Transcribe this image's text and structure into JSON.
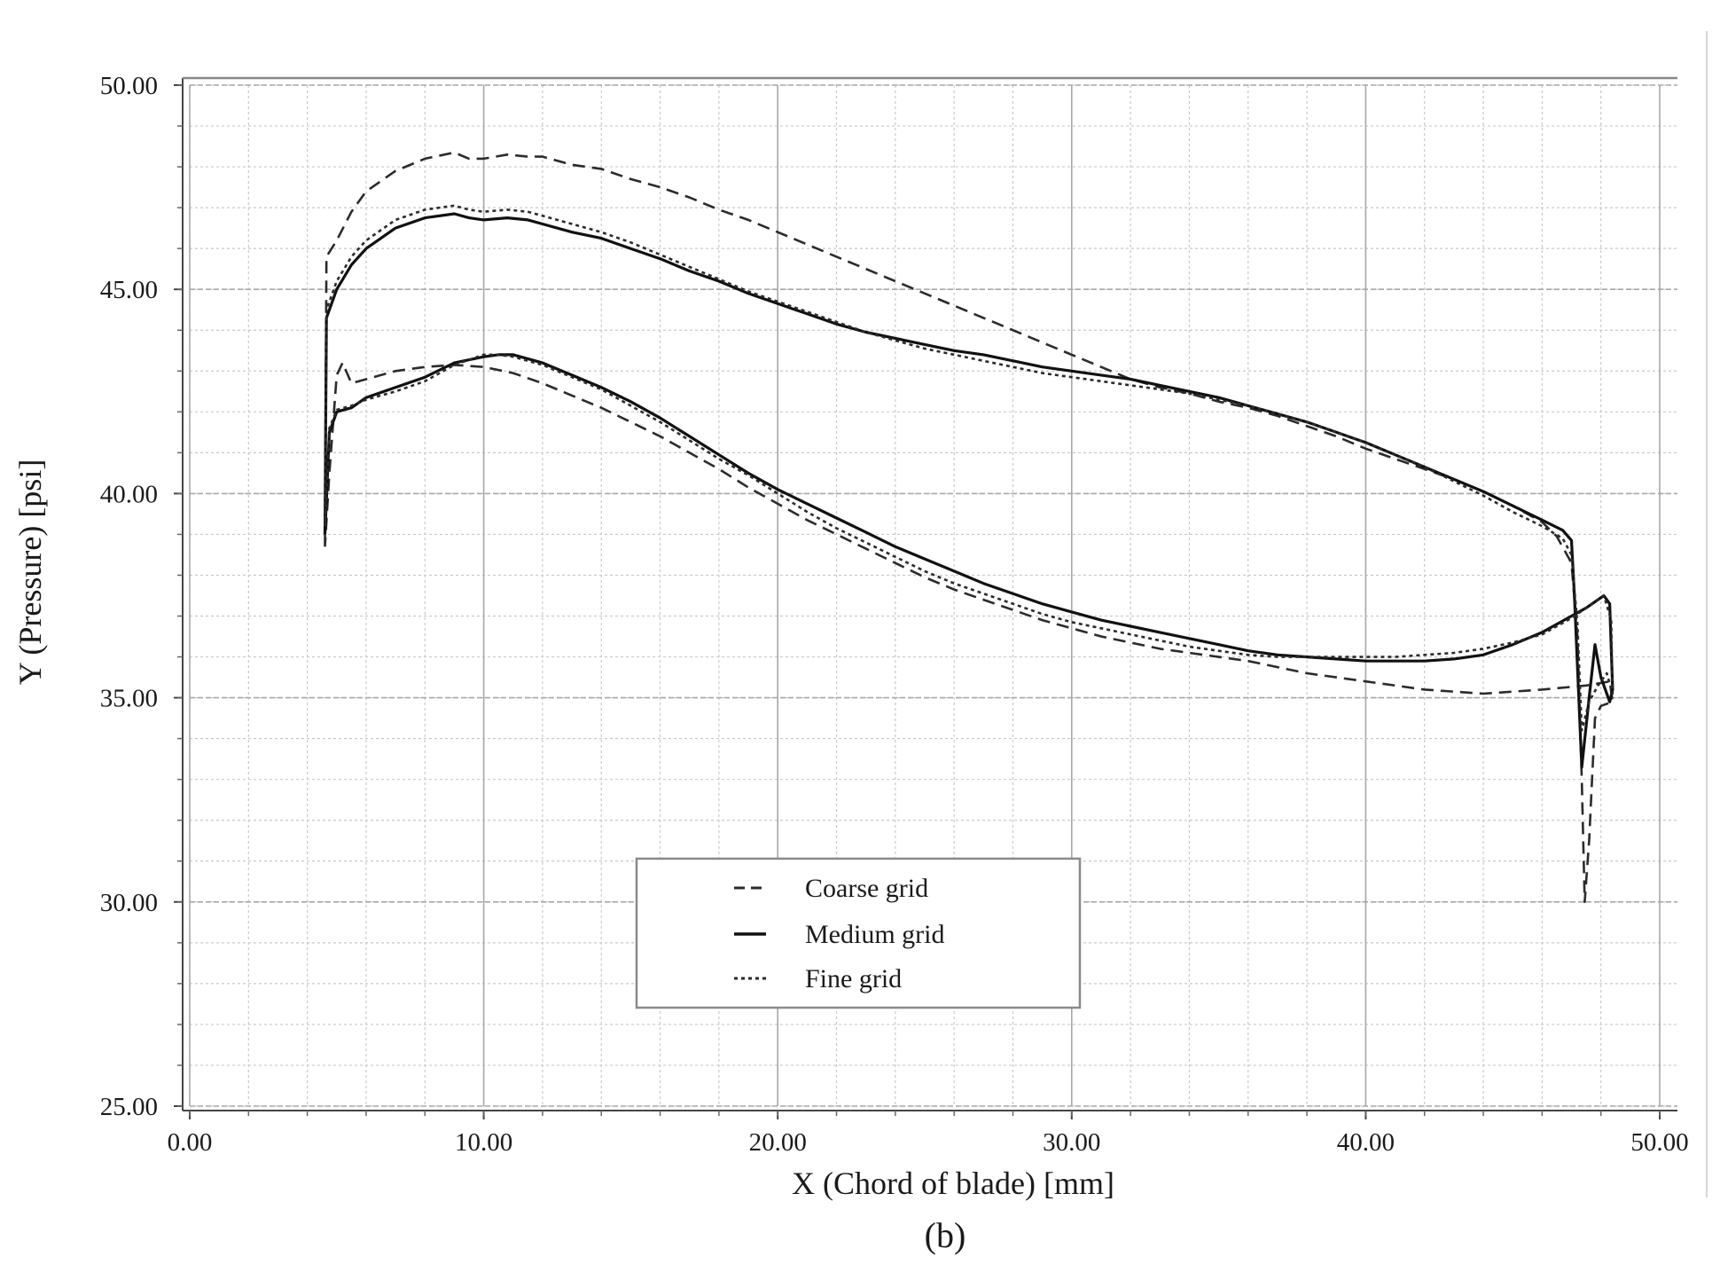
{
  "chart_data": {
    "type": "line",
    "panel_label": "(b)",
    "xlabel": "X (Chord of blade) [mm]",
    "ylabel": "Y (Pressure) [psi]",
    "xlim": [
      0,
      50
    ],
    "ylim": [
      25,
      50
    ],
    "xticks": [
      "0.00",
      "10.00",
      "20.00",
      "30.00",
      "40.00",
      "50.00"
    ],
    "yticks": [
      "25.00",
      "30.00",
      "35.00",
      "40.00",
      "45.00",
      "50.00"
    ],
    "grid": true,
    "legend_position": "bottom-center",
    "series": [
      {
        "name": "Coarse grid",
        "style": "dashed",
        "color": "#2b2b2b",
        "points": [
          [
            4.6,
            38.7
          ],
          [
            4.65,
            45.8
          ],
          [
            5.0,
            46.2
          ],
          [
            5.5,
            46.9
          ],
          [
            6.0,
            47.4
          ],
          [
            7.0,
            47.9
          ],
          [
            8.0,
            48.2
          ],
          [
            9.0,
            48.35
          ],
          [
            9.5,
            48.2
          ],
          [
            10.0,
            48.2
          ],
          [
            10.8,
            48.3
          ],
          [
            11.5,
            48.25
          ],
          [
            12.0,
            48.25
          ],
          [
            13.0,
            48.05
          ],
          [
            14.0,
            47.95
          ],
          [
            15.0,
            47.7
          ],
          [
            16.0,
            47.5
          ],
          [
            17.0,
            47.25
          ],
          [
            18.0,
            46.95
          ],
          [
            19.0,
            46.7
          ],
          [
            20.0,
            46.4
          ],
          [
            21.0,
            46.1
          ],
          [
            22.0,
            45.8
          ],
          [
            23.0,
            45.5
          ],
          [
            24.0,
            45.2
          ],
          [
            25.0,
            44.9
          ],
          [
            26.0,
            44.6
          ],
          [
            27.0,
            44.3
          ],
          [
            28.0,
            44.0
          ],
          [
            29.0,
            43.7
          ],
          [
            30.0,
            43.4
          ],
          [
            31.0,
            43.1
          ],
          [
            32.0,
            42.8
          ],
          [
            33.0,
            42.6
          ],
          [
            34.0,
            42.45
          ],
          [
            35.0,
            42.25
          ],
          [
            36.0,
            42.1
          ],
          [
            37.0,
            41.9
          ],
          [
            38.0,
            41.65
          ],
          [
            39.0,
            41.4
          ],
          [
            40.0,
            41.1
          ],
          [
            41.0,
            40.85
          ],
          [
            42.0,
            40.6
          ],
          [
            43.0,
            40.35
          ],
          [
            44.0,
            40.05
          ],
          [
            45.0,
            39.7
          ],
          [
            46.0,
            39.3
          ],
          [
            46.5,
            38.95
          ],
          [
            47.0,
            38.3
          ],
          [
            47.2,
            36.5
          ],
          [
            47.35,
            33.0
          ],
          [
            47.45,
            30.0
          ],
          [
            47.6,
            31.5
          ],
          [
            47.8,
            34.5
          ],
          [
            48.0,
            34.8
          ],
          [
            48.4,
            34.9
          ],
          [
            48.3,
            35.4
          ],
          [
            47.5,
            35.3
          ],
          [
            46.0,
            35.2
          ],
          [
            45.0,
            35.15
          ],
          [
            44.0,
            35.1
          ],
          [
            43.0,
            35.15
          ],
          [
            42.0,
            35.2
          ],
          [
            41.0,
            35.3
          ],
          [
            40.0,
            35.4
          ],
          [
            39.0,
            35.5
          ],
          [
            38.0,
            35.6
          ],
          [
            37.0,
            35.75
          ],
          [
            36.0,
            35.9
          ],
          [
            35.0,
            36.0
          ],
          [
            34.0,
            36.1
          ],
          [
            33.0,
            36.2
          ],
          [
            32.0,
            36.35
          ],
          [
            31.0,
            36.5
          ],
          [
            30.0,
            36.7
          ],
          [
            29.0,
            36.9
          ],
          [
            28.0,
            37.15
          ],
          [
            27.0,
            37.4
          ],
          [
            26.0,
            37.65
          ],
          [
            25.0,
            37.95
          ],
          [
            24.0,
            38.3
          ],
          [
            23.0,
            38.65
          ],
          [
            22.0,
            39.0
          ],
          [
            21.0,
            39.35
          ],
          [
            20.0,
            39.75
          ],
          [
            19.0,
            40.15
          ],
          [
            18.0,
            40.6
          ],
          [
            17.0,
            41.0
          ],
          [
            16.0,
            41.4
          ],
          [
            15.0,
            41.75
          ],
          [
            14.0,
            42.1
          ],
          [
            13.0,
            42.4
          ],
          [
            12.0,
            42.7
          ],
          [
            11.0,
            42.95
          ],
          [
            10.0,
            43.1
          ],
          [
            9.0,
            43.15
          ],
          [
            8.0,
            43.1
          ],
          [
            7.0,
            43.0
          ],
          [
            6.0,
            42.8
          ],
          [
            5.5,
            42.7
          ],
          [
            5.2,
            43.2
          ],
          [
            5.0,
            42.9
          ],
          [
            4.75,
            40.5
          ],
          [
            4.6,
            38.7
          ]
        ]
      },
      {
        "name": "Medium grid",
        "style": "solid",
        "color": "#111111",
        "points": [
          [
            4.6,
            39.0
          ],
          [
            4.65,
            44.3
          ],
          [
            5.0,
            45.0
          ],
          [
            5.5,
            45.6
          ],
          [
            6.0,
            46.0
          ],
          [
            7.0,
            46.5
          ],
          [
            8.0,
            46.75
          ],
          [
            9.0,
            46.85
          ],
          [
            9.5,
            46.75
          ],
          [
            10.0,
            46.7
          ],
          [
            10.8,
            46.75
          ],
          [
            11.5,
            46.7
          ],
          [
            12.0,
            46.6
          ],
          [
            13.0,
            46.4
          ],
          [
            14.0,
            46.25
          ],
          [
            15.0,
            46.0
          ],
          [
            16.0,
            45.75
          ],
          [
            17.0,
            45.45
          ],
          [
            18.0,
            45.2
          ],
          [
            19.0,
            44.9
          ],
          [
            20.0,
            44.65
          ],
          [
            21.0,
            44.4
          ],
          [
            22.0,
            44.15
          ],
          [
            23.0,
            43.95
          ],
          [
            24.0,
            43.8
          ],
          [
            25.0,
            43.65
          ],
          [
            26.0,
            43.5
          ],
          [
            27.0,
            43.4
          ],
          [
            28.0,
            43.25
          ],
          [
            29.0,
            43.1
          ],
          [
            30.0,
            43.0
          ],
          [
            31.0,
            42.9
          ],
          [
            32.0,
            42.8
          ],
          [
            33.0,
            42.65
          ],
          [
            34.0,
            42.5
          ],
          [
            35.0,
            42.35
          ],
          [
            36.0,
            42.15
          ],
          [
            37.0,
            41.95
          ],
          [
            38.0,
            41.75
          ],
          [
            39.0,
            41.5
          ],
          [
            40.0,
            41.25
          ],
          [
            41.0,
            40.95
          ],
          [
            42.0,
            40.65
          ],
          [
            43.0,
            40.35
          ],
          [
            44.0,
            40.05
          ],
          [
            45.0,
            39.7
          ],
          [
            46.0,
            39.35
          ],
          [
            46.7,
            39.1
          ],
          [
            47.0,
            38.85
          ],
          [
            47.1,
            37.5
          ],
          [
            47.35,
            33.3
          ],
          [
            47.6,
            35.0
          ],
          [
            47.8,
            36.3
          ],
          [
            48.0,
            35.5
          ],
          [
            48.3,
            34.9
          ],
          [
            48.4,
            35.2
          ],
          [
            48.3,
            37.3
          ],
          [
            48.1,
            37.5
          ],
          [
            47.5,
            37.2
          ],
          [
            47.0,
            37.0
          ],
          [
            46.0,
            36.6
          ],
          [
            45.0,
            36.3
          ],
          [
            44.0,
            36.05
          ],
          [
            43.0,
            35.95
          ],
          [
            42.0,
            35.9
          ],
          [
            41.0,
            35.9
          ],
          [
            40.0,
            35.9
          ],
          [
            39.0,
            35.95
          ],
          [
            38.0,
            36.0
          ],
          [
            37.0,
            36.05
          ],
          [
            36.0,
            36.15
          ],
          [
            35.0,
            36.3
          ],
          [
            34.0,
            36.45
          ],
          [
            33.0,
            36.6
          ],
          [
            32.0,
            36.75
          ],
          [
            31.0,
            36.9
          ],
          [
            30.0,
            37.1
          ],
          [
            29.0,
            37.3
          ],
          [
            28.0,
            37.55
          ],
          [
            27.0,
            37.8
          ],
          [
            26.0,
            38.1
          ],
          [
            25.0,
            38.4
          ],
          [
            24.0,
            38.7
          ],
          [
            23.0,
            39.05
          ],
          [
            22.0,
            39.4
          ],
          [
            21.0,
            39.75
          ],
          [
            20.0,
            40.1
          ],
          [
            19.0,
            40.5
          ],
          [
            18.0,
            40.95
          ],
          [
            17.0,
            41.4
          ],
          [
            16.0,
            41.85
          ],
          [
            15.0,
            42.25
          ],
          [
            14.0,
            42.6
          ],
          [
            13.0,
            42.9
          ],
          [
            12.0,
            43.2
          ],
          [
            11.0,
            43.4
          ],
          [
            10.5,
            43.4
          ],
          [
            10.0,
            43.35
          ],
          [
            9.0,
            43.2
          ],
          [
            8.0,
            42.85
          ],
          [
            7.0,
            42.6
          ],
          [
            6.0,
            42.35
          ],
          [
            5.5,
            42.1
          ],
          [
            5.0,
            42.0
          ],
          [
            4.75,
            41.5
          ],
          [
            4.6,
            39.0
          ]
        ]
      },
      {
        "name": "Fine grid",
        "style": "dotted",
        "color": "#2b2b2b",
        "points": [
          [
            4.6,
            39.2
          ],
          [
            4.65,
            44.5
          ],
          [
            5.0,
            45.2
          ],
          [
            5.5,
            45.8
          ],
          [
            6.0,
            46.2
          ],
          [
            7.0,
            46.7
          ],
          [
            8.0,
            46.95
          ],
          [
            9.0,
            47.05
          ],
          [
            9.5,
            46.95
          ],
          [
            10.0,
            46.9
          ],
          [
            10.8,
            46.95
          ],
          [
            11.5,
            46.9
          ],
          [
            12.0,
            46.8
          ],
          [
            13.0,
            46.6
          ],
          [
            14.0,
            46.4
          ],
          [
            15.0,
            46.15
          ],
          [
            16.0,
            45.85
          ],
          [
            17.0,
            45.55
          ],
          [
            18.0,
            45.25
          ],
          [
            19.0,
            44.95
          ],
          [
            20.0,
            44.7
          ],
          [
            21.0,
            44.45
          ],
          [
            22.0,
            44.2
          ],
          [
            23.0,
            43.95
          ],
          [
            24.0,
            43.75
          ],
          [
            25.0,
            43.55
          ],
          [
            26.0,
            43.4
          ],
          [
            27.0,
            43.25
          ],
          [
            28.0,
            43.1
          ],
          [
            29.0,
            42.95
          ],
          [
            30.0,
            42.85
          ],
          [
            31.0,
            42.75
          ],
          [
            32.0,
            42.65
          ],
          [
            33.0,
            42.55
          ],
          [
            34.0,
            42.45
          ],
          [
            35.0,
            42.3
          ],
          [
            36.0,
            42.15
          ],
          [
            37.0,
            41.95
          ],
          [
            38.0,
            41.75
          ],
          [
            39.0,
            41.5
          ],
          [
            40.0,
            41.25
          ],
          [
            41.0,
            40.95
          ],
          [
            42.0,
            40.65
          ],
          [
            43.0,
            40.3
          ],
          [
            44.0,
            39.95
          ],
          [
            45.0,
            39.55
          ],
          [
            46.0,
            39.2
          ],
          [
            46.7,
            38.9
          ],
          [
            47.0,
            38.5
          ],
          [
            47.2,
            36.8
          ],
          [
            47.35,
            34.2
          ],
          [
            47.6,
            34.9
          ],
          [
            47.9,
            35.3
          ],
          [
            48.2,
            35.6
          ],
          [
            48.4,
            35.1
          ],
          [
            48.35,
            36.9
          ],
          [
            48.1,
            37.5
          ],
          [
            47.5,
            37.2
          ],
          [
            47.0,
            36.95
          ],
          [
            46.0,
            36.55
          ],
          [
            45.0,
            36.35
          ],
          [
            44.0,
            36.2
          ],
          [
            43.0,
            36.1
          ],
          [
            42.0,
            36.05
          ],
          [
            41.0,
            36.0
          ],
          [
            40.0,
            36.0
          ],
          [
            39.0,
            36.0
          ],
          [
            38.0,
            36.0
          ],
          [
            37.0,
            36.0
          ],
          [
            36.0,
            36.05
          ],
          [
            35.0,
            36.15
          ],
          [
            34.0,
            36.25
          ],
          [
            33.0,
            36.4
          ],
          [
            32.0,
            36.55
          ],
          [
            31.0,
            36.7
          ],
          [
            30.0,
            36.85
          ],
          [
            29.0,
            37.05
          ],
          [
            28.0,
            37.3
          ],
          [
            27.0,
            37.55
          ],
          [
            26.0,
            37.8
          ],
          [
            25.0,
            38.1
          ],
          [
            24.0,
            38.45
          ],
          [
            23.0,
            38.8
          ],
          [
            22.0,
            39.15
          ],
          [
            21.0,
            39.55
          ],
          [
            20.0,
            40.0
          ],
          [
            19.0,
            40.45
          ],
          [
            18.0,
            40.85
          ],
          [
            17.0,
            41.3
          ],
          [
            16.0,
            41.75
          ],
          [
            15.0,
            42.15
          ],
          [
            14.0,
            42.55
          ],
          [
            13.0,
            42.85
          ],
          [
            12.0,
            43.15
          ],
          [
            11.0,
            43.35
          ],
          [
            10.5,
            43.4
          ],
          [
            10.0,
            43.4
          ],
          [
            9.0,
            43.15
          ],
          [
            8.0,
            42.75
          ],
          [
            7.0,
            42.5
          ],
          [
            6.0,
            42.3
          ],
          [
            5.5,
            42.15
          ],
          [
            5.0,
            42.05
          ],
          [
            4.75,
            41.6
          ],
          [
            4.6,
            39.2
          ]
        ]
      }
    ]
  }
}
